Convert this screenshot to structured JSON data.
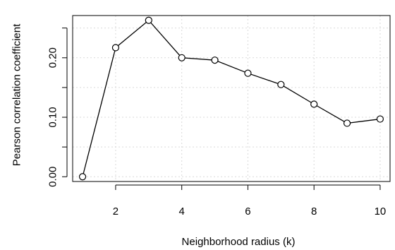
{
  "chart_data": {
    "type": "line",
    "title": "",
    "xlabel": "Neighborhood radius (k)",
    "ylabel": "Pearson correlation coefficient",
    "x": [
      1,
      2,
      3,
      4,
      5,
      6,
      7,
      8,
      9,
      10
    ],
    "series": [
      {
        "values": [
          0.0,
          0.217,
          0.263,
          0.2,
          0.196,
          0.174,
          0.155,
          0.122,
          0.09,
          0.097
        ]
      }
    ],
    "xlim": [
      0.7,
      10.3
    ],
    "ylim": [
      -0.008,
      0.271
    ],
    "x_ticks": [
      2,
      4,
      6,
      8,
      10
    ],
    "y_ticks": [
      0.0,
      0.05,
      0.1,
      0.15,
      0.2,
      0.25
    ],
    "y_tick_labels": [
      "0.00",
      "",
      "0.10",
      "",
      "0.20",
      ""
    ],
    "grid": true,
    "marker": "open-circle",
    "colors": {
      "line": "#000000",
      "grid": "#d9d9d9",
      "background": "#ffffff"
    }
  }
}
